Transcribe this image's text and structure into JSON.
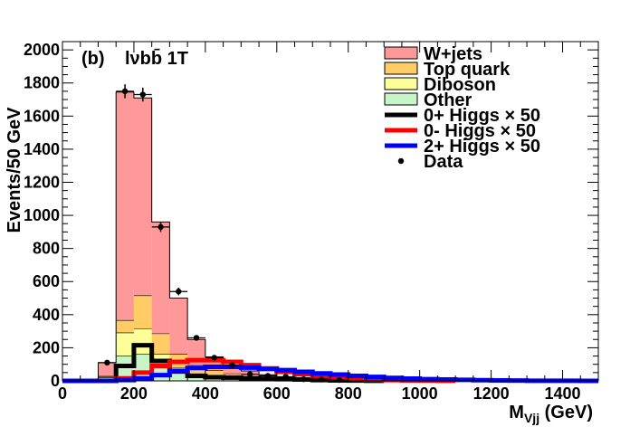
{
  "chart_data": {
    "type": "histogram",
    "panel_label": "(b)",
    "channel_label": "lνbb̄ 1T",
    "xlabel_main": "M",
    "xlabel_sub": "Vjj",
    "xlabel_unit": " (GeV)",
    "ylabel": "Events/50 GeV",
    "xlim": [
      0,
      1500
    ],
    "ylim": [
      0,
      2050
    ],
    "xticks": [
      0,
      200,
      400,
      600,
      800,
      1000,
      1200,
      1400
    ],
    "yticks": [
      0,
      200,
      400,
      600,
      800,
      1000,
      1200,
      1400,
      1600,
      1800,
      2000
    ],
    "bin_edges": [
      100,
      150,
      200,
      250,
      300,
      350,
      400,
      450,
      500,
      550,
      600,
      650,
      700,
      750,
      800
    ],
    "stack": [
      {
        "name": "Other",
        "color": "#c8f5c8",
        "values": [
          18,
          150,
          160,
          90,
          45,
          25,
          15,
          10,
          6,
          4,
          2,
          2,
          1,
          1
        ]
      },
      {
        "name": "Diboson",
        "color": "#ffff99",
        "values": [
          5,
          140,
          155,
          70,
          35,
          18,
          12,
          8,
          5,
          3,
          2,
          1,
          1,
          0
        ]
      },
      {
        "name": "Top quark",
        "color": "#ffcc66",
        "values": [
          5,
          75,
          200,
          125,
          80,
          50,
          35,
          25,
          15,
          10,
          6,
          4,
          2,
          1
        ]
      },
      {
        "name": "W+jets",
        "color": "#ff9999",
        "values": [
          82,
          1380,
          1195,
          675,
          340,
          157,
          83,
          52,
          34,
          20,
          14,
          9,
          6,
          3
        ]
      }
    ],
    "signals": [
      {
        "name": "0+ Higgs",
        "scale_label": "× 50",
        "color": "#000000",
        "edges": [
          100,
          150,
          200,
          250,
          300,
          350,
          400,
          450,
          500,
          550,
          600,
          650,
          700,
          750,
          800,
          850,
          900
        ],
        "values": [
          0,
          90,
          215,
          120,
          60,
          30,
          22,
          20,
          15,
          12,
          10,
          8,
          5,
          3,
          2,
          1
        ]
      },
      {
        "name": "0- Higgs",
        "scale_label": "× 50",
        "color": "#ff0000",
        "edges": [
          100,
          150,
          200,
          250,
          300,
          350,
          400,
          450,
          500,
          550,
          600,
          650,
          700,
          750,
          800,
          850,
          900,
          950,
          1000,
          1050,
          1100
        ],
        "values": [
          0,
          15,
          50,
          90,
          115,
          125,
          125,
          115,
          95,
          75,
          55,
          40,
          28,
          18,
          12,
          8,
          5,
          3,
          2,
          1
        ]
      },
      {
        "name": "2+ Higgs",
        "scale_label": "× 50",
        "color": "#0000ff",
        "edges": [
          0,
          50,
          100,
          150,
          200,
          250,
          300,
          350,
          400,
          450,
          500,
          550,
          600,
          650,
          700,
          750,
          800,
          850,
          900,
          950,
          1000,
          1050,
          1100,
          1150,
          1200,
          1250,
          1300,
          1350,
          1400,
          1450,
          1500
        ],
        "values": [
          0,
          0,
          0,
          5,
          15,
          35,
          60,
          78,
          85,
          85,
          80,
          72,
          65,
          55,
          45,
          38,
          30,
          24,
          18,
          14,
          10,
          8,
          6,
          4,
          3,
          2,
          1,
          1,
          1,
          0
        ]
      }
    ],
    "data": {
      "name": "Data",
      "x": [
        125,
        175,
        225,
        275,
        325,
        375,
        425,
        475,
        525,
        575,
        625,
        675,
        725,
        775
      ],
      "y": [
        110,
        1750,
        1730,
        930,
        540,
        260,
        140,
        95,
        40,
        30,
        25,
        10,
        8,
        5
      ],
      "err": [
        11,
        42,
        42,
        30,
        23,
        16,
        12,
        10,
        6,
        5,
        5,
        3,
        3,
        2
      ]
    },
    "legend_placement": "top-right"
  }
}
